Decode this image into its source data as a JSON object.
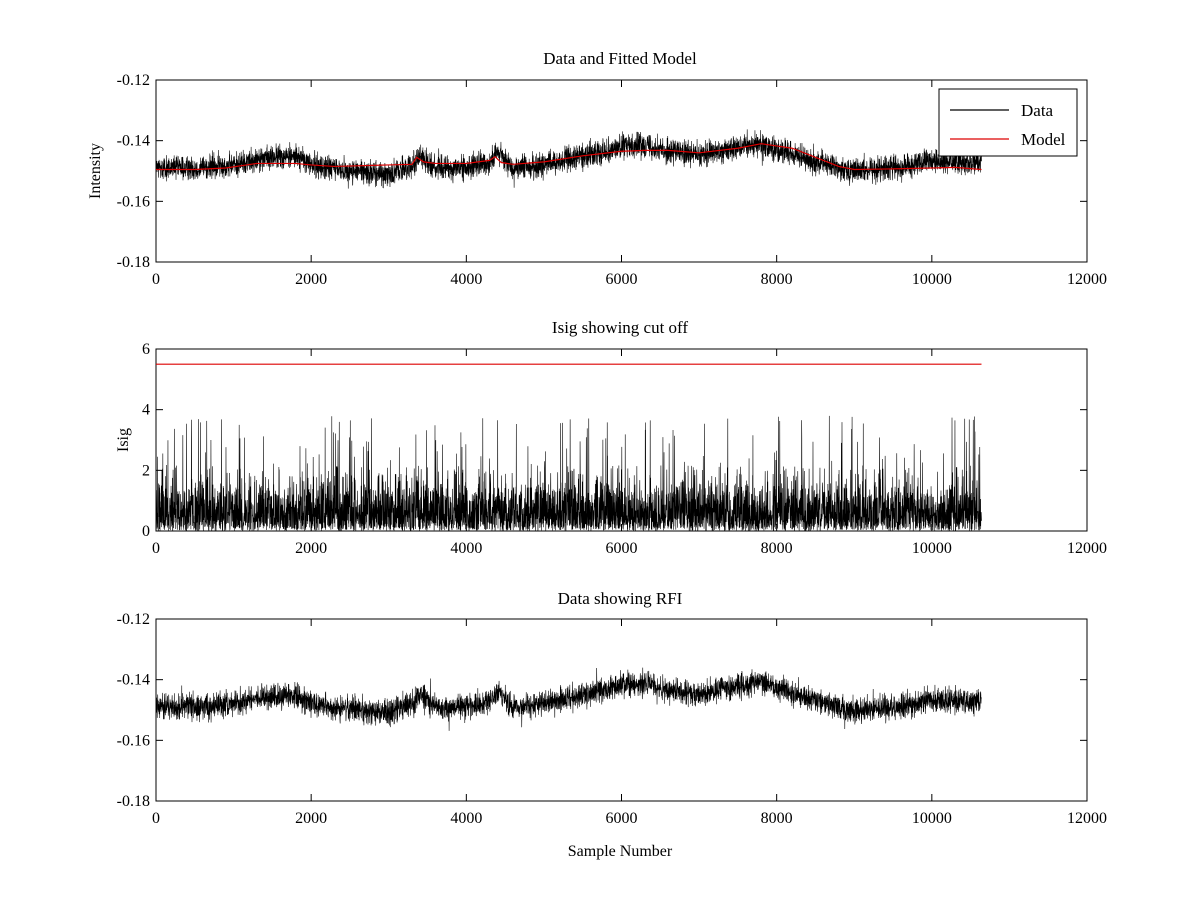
{
  "chart_data": [
    {
      "type": "line",
      "title": "Data and Fitted Model",
      "xlabel": "",
      "ylabel": "Intensity",
      "xlim": [
        0,
        12000
      ],
      "ylim": [
        -0.18,
        -0.12
      ],
      "xticks": [
        0,
        2000,
        4000,
        6000,
        8000,
        10000,
        12000
      ],
      "yticks": [
        -0.18,
        -0.16,
        -0.14,
        -0.12
      ],
      "xtick_labels": [
        "0",
        "2000",
        "4000",
        "6000",
        "8000",
        "10000",
        "12000"
      ],
      "ytick_labels": [
        "-0.18",
        "-0.16",
        "-0.14",
        "-0.12"
      ],
      "legend": {
        "position": "top-right",
        "entries": [
          "Data",
          "Model"
        ]
      },
      "series": [
        {
          "name": "Data",
          "color": "#000000",
          "kind": "noisy",
          "n_samples": 10640,
          "noise_half_range": 0.006,
          "baseline_x": [
            0,
            500,
            1000,
            1300,
            1800,
            2000,
            2500,
            3000,
            3300,
            3400,
            3600,
            4000,
            4300,
            4400,
            4600,
            5000,
            5500,
            6000,
            6300,
            6500,
            7000,
            7500,
            7800,
            8000,
            8500,
            9000,
            9500,
            10000,
            10640
          ],
          "baseline_y": [
            -0.149,
            -0.149,
            -0.148,
            -0.146,
            -0.145,
            -0.148,
            -0.15,
            -0.151,
            -0.148,
            -0.145,
            -0.149,
            -0.149,
            -0.147,
            -0.144,
            -0.149,
            -0.148,
            -0.145,
            -0.142,
            -0.141,
            -0.143,
            -0.145,
            -0.142,
            -0.141,
            -0.143,
            -0.147,
            -0.15,
            -0.149,
            -0.147,
            -0.147
          ]
        },
        {
          "name": "Model",
          "color": "#dd0000",
          "kind": "line",
          "x": [
            0,
            500,
            900,
            1300,
            1800,
            2000,
            2300,
            3000,
            3300,
            3360,
            3450,
            3600,
            4000,
            4300,
            4370,
            4450,
            4600,
            5000,
            5500,
            6000,
            6300,
            6600,
            7000,
            7500,
            7800,
            8200,
            8500,
            8800,
            9000,
            9500,
            10000,
            10300,
            10640
          ],
          "y": [
            -0.1495,
            -0.1495,
            -0.149,
            -0.1475,
            -0.1475,
            -0.148,
            -0.1485,
            -0.148,
            -0.1478,
            -0.1455,
            -0.147,
            -0.1475,
            -0.1475,
            -0.1465,
            -0.1453,
            -0.1472,
            -0.1478,
            -0.147,
            -0.145,
            -0.1435,
            -0.1432,
            -0.1432,
            -0.144,
            -0.1425,
            -0.141,
            -0.1425,
            -0.1455,
            -0.1485,
            -0.1495,
            -0.1493,
            -0.149,
            -0.1488,
            -0.1495
          ]
        }
      ]
    },
    {
      "type": "line",
      "title": "Isig showing cut off",
      "xlabel": "",
      "ylabel": "Isig",
      "xlim": [
        0,
        12000
      ],
      "ylim": [
        0,
        6
      ],
      "xticks": [
        0,
        2000,
        4000,
        6000,
        8000,
        10000,
        12000
      ],
      "yticks": [
        0,
        2,
        4,
        6
      ],
      "xtick_labels": [
        "0",
        "2000",
        "4000",
        "6000",
        "8000",
        "10000",
        "12000"
      ],
      "ytick_labels": [
        "0",
        "2",
        "4",
        "6"
      ],
      "series": [
        {
          "color": "#000000",
          "kind": "spiky",
          "n_samples": 10640,
          "typical_max": 1.2,
          "peak_max": 3.8
        },
        {
          "color": "#dd0000",
          "kind": "line",
          "x": [
            0,
            10640
          ],
          "y": [
            5.5,
            5.5
          ]
        }
      ]
    },
    {
      "type": "line",
      "title": "Data showing RFI",
      "xlabel": "Sample Number",
      "ylabel": "",
      "xlim": [
        0,
        12000
      ],
      "ylim": [
        -0.18,
        -0.12
      ],
      "xticks": [
        0,
        2000,
        4000,
        6000,
        8000,
        10000,
        12000
      ],
      "yticks": [
        -0.18,
        -0.16,
        -0.14,
        -0.12
      ],
      "xtick_labels": [
        "0",
        "2000",
        "4000",
        "6000",
        "8000",
        "10000",
        "12000"
      ],
      "ytick_labels": [
        "-0.18",
        "-0.16",
        "-0.14",
        "-0.12"
      ],
      "series": [
        {
          "color": "#000000",
          "kind": "noisy",
          "n_samples": 10640,
          "noise_half_range": 0.006,
          "baseline_x": [
            0,
            500,
            1000,
            1300,
            1800,
            2000,
            2500,
            3000,
            3300,
            3400,
            3600,
            4000,
            4300,
            4400,
            4600,
            5000,
            5500,
            6000,
            6300,
            6500,
            7000,
            7500,
            7800,
            8000,
            8500,
            9000,
            9500,
            10000,
            10640
          ],
          "baseline_y": [
            -0.149,
            -0.149,
            -0.148,
            -0.146,
            -0.145,
            -0.148,
            -0.15,
            -0.151,
            -0.148,
            -0.145,
            -0.149,
            -0.149,
            -0.147,
            -0.144,
            -0.149,
            -0.148,
            -0.145,
            -0.142,
            -0.141,
            -0.143,
            -0.145,
            -0.142,
            -0.141,
            -0.143,
            -0.147,
            -0.15,
            -0.149,
            -0.147,
            -0.147
          ]
        }
      ]
    }
  ]
}
